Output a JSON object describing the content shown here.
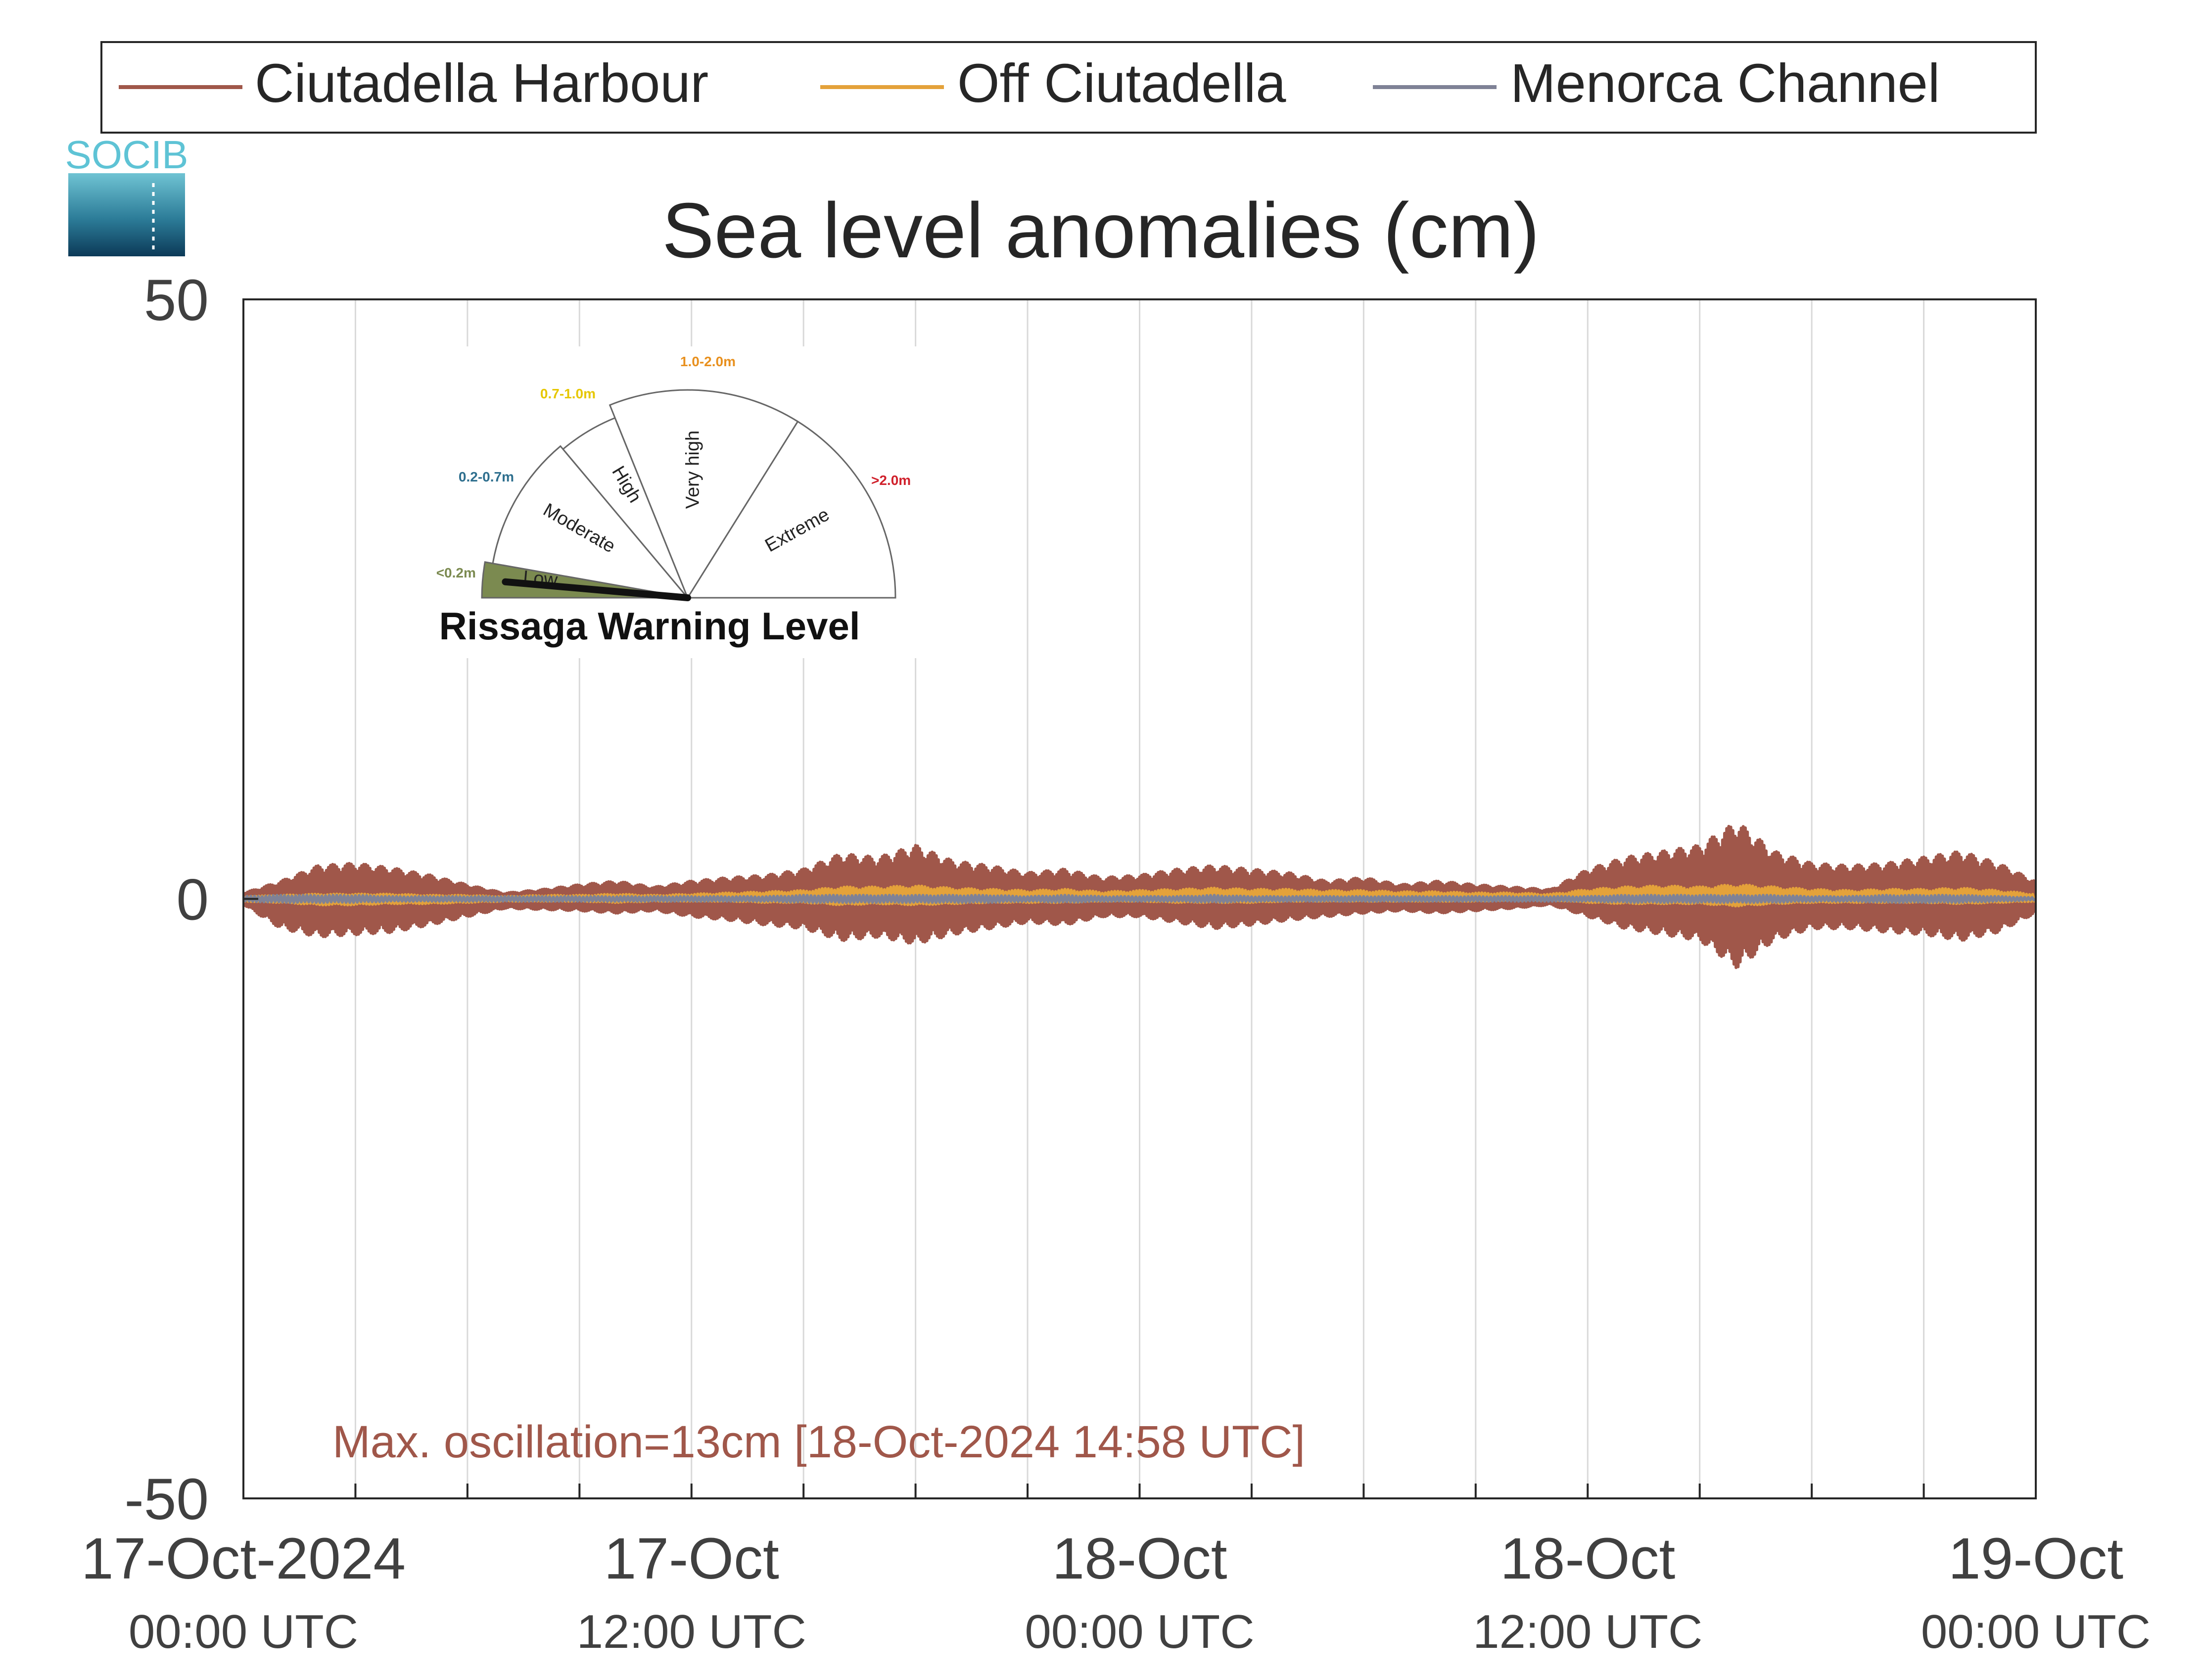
{
  "legend": {
    "items": [
      {
        "label": "Ciutadella Harbour",
        "color": "#a0574a"
      },
      {
        "label": "Off Ciutadella",
        "color": "#e4a23a"
      },
      {
        "label": "Menorca Channel",
        "color": "#7f8296"
      }
    ]
  },
  "logo": {
    "text": "SOCIB"
  },
  "annotation": {
    "text": "Max. oscillation=13cm [18-Oct-2024 14:58 UTC]",
    "color": "#a0574a"
  },
  "gauge": {
    "title": "Rissaga Warning Level",
    "current_level": "Low",
    "segments": [
      {
        "name": "Low",
        "range": "<0.2m",
        "range_color": "#7b8a50",
        "fill": "#7b8a50"
      },
      {
        "name": "Moderate",
        "range": "0.2-0.7m",
        "range_color": "#2e6f8e",
        "fill": "#ffffff"
      },
      {
        "name": "High",
        "range": "0.7-1.0m",
        "range_color": "#e6c700",
        "fill": "#ffffff"
      },
      {
        "name": "Very high",
        "range": "1.0-2.0m",
        "range_color": "#e8901e",
        "fill": "#ffffff"
      },
      {
        "name": "Extreme",
        "range": ">2.0m",
        "range_color": "#d0202b",
        "fill": "#ffffff"
      }
    ]
  },
  "chart_data": {
    "type": "line",
    "title": "Sea level anomalies (cm)",
    "xlabel": "",
    "ylabel": "",
    "ylim": [
      -50,
      50
    ],
    "xlim": [
      "2024-10-17 00:00",
      "2024-10-19 00:00"
    ],
    "yticks": [
      {
        "value": 50,
        "label": "50"
      },
      {
        "value": 0,
        "label": "0"
      },
      {
        "value": -50,
        "label": "-50"
      }
    ],
    "xticks": [
      {
        "value": "2024-10-17 00:00",
        "line1": "17-Oct-2024",
        "line2": "00:00 UTC"
      },
      {
        "value": "2024-10-17 12:00",
        "line1": "17-Oct",
        "line2": "12:00 UTC"
      },
      {
        "value": "2024-10-18 00:00",
        "line1": "18-Oct",
        "line2": "00:00 UTC"
      },
      {
        "value": "2024-10-18 12:00",
        "line1": "18-Oct",
        "line2": "12:00 UTC"
      },
      {
        "value": "2024-10-19 00:00",
        "line1": "19-Oct",
        "line2": "00:00 UTC"
      }
    ],
    "grid": {
      "vertical": true,
      "interval_hours": 3
    },
    "legend_position": "top",
    "series": [
      {
        "name": "Ciutadella Harbour",
        "color": "#a0574a",
        "time": [
          "2024-10-17 00:00",
          "2024-10-17 01:00",
          "2024-10-17 02:00",
          "2024-10-17 03:00",
          "2024-10-17 04:00",
          "2024-10-17 05:00",
          "2024-10-17 06:00",
          "2024-10-17 07:00",
          "2024-10-17 08:00",
          "2024-10-17 09:00",
          "2024-10-17 10:00",
          "2024-10-17 11:00",
          "2024-10-17 12:00",
          "2024-10-17 13:00",
          "2024-10-17 14:00",
          "2024-10-17 15:00",
          "2024-10-17 16:00",
          "2024-10-17 17:00",
          "2024-10-17 18:00",
          "2024-10-17 19:00",
          "2024-10-17 20:00",
          "2024-10-17 21:00",
          "2024-10-17 22:00",
          "2024-10-17 23:00",
          "2024-10-18 00:00",
          "2024-10-18 01:00",
          "2024-10-18 02:00",
          "2024-10-18 03:00",
          "2024-10-18 04:00",
          "2024-10-18 05:00",
          "2024-10-18 06:00",
          "2024-10-18 07:00",
          "2024-10-18 08:00",
          "2024-10-18 09:00",
          "2024-10-18 10:00",
          "2024-10-18 11:00",
          "2024-10-18 12:00",
          "2024-10-18 13:00",
          "2024-10-18 14:00",
          "2024-10-18 15:00",
          "2024-10-18 16:00",
          "2024-10-18 17:00",
          "2024-10-18 18:00",
          "2024-10-18 19:00",
          "2024-10-18 20:00",
          "2024-10-18 21:00",
          "2024-10-18 22:00",
          "2024-10-18 23:00",
          "2024-10-19 00:00"
        ],
        "max": [
          0.5,
          1.5,
          2.8,
          3.0,
          2.6,
          2.0,
          1.2,
          0.5,
          0.8,
          1.2,
          1.5,
          1.0,
          1.5,
          1.8,
          2.0,
          2.5,
          3.8,
          3.5,
          4.5,
          3.2,
          2.8,
          2.2,
          2.5,
          1.8,
          2.0,
          2.5,
          2.8,
          2.5,
          2.2,
          1.5,
          1.8,
          1.2,
          1.5,
          1.2,
          1.0,
          0.8,
          2.5,
          3.5,
          4.0,
          4.5,
          6.5,
          4.0,
          3.0,
          2.8,
          3.0,
          3.5,
          4.0,
          3.0,
          1.5
        ],
        "min": [
          -0.5,
          -2.5,
          -3.2,
          -3.0,
          -2.8,
          -2.2,
          -1.5,
          -0.8,
          -0.9,
          -1.0,
          -1.2,
          -1.0,
          -1.5,
          -1.8,
          -2.2,
          -2.5,
          -3.5,
          -3.2,
          -3.8,
          -3.0,
          -2.5,
          -2.0,
          -2.2,
          -1.5,
          -1.5,
          -2.0,
          -2.5,
          -2.2,
          -1.8,
          -1.5,
          -1.2,
          -1.0,
          -1.2,
          -1.0,
          -0.8,
          -0.5,
          -1.5,
          -2.5,
          -3.0,
          -3.5,
          -5.8,
          -3.5,
          -2.5,
          -2.5,
          -2.8,
          -3.0,
          -3.5,
          -2.8,
          -1.2
        ]
      },
      {
        "name": "Off Ciutadella",
        "color": "#e4a23a",
        "time": [
          "2024-10-17 00:00",
          "2024-10-17 01:00",
          "2024-10-17 02:00",
          "2024-10-17 03:00",
          "2024-10-17 04:00",
          "2024-10-17 05:00",
          "2024-10-17 06:00",
          "2024-10-17 07:00",
          "2024-10-17 08:00",
          "2024-10-17 09:00",
          "2024-10-17 10:00",
          "2024-10-17 11:00",
          "2024-10-17 12:00",
          "2024-10-17 13:00",
          "2024-10-17 14:00",
          "2024-10-17 15:00",
          "2024-10-17 16:00",
          "2024-10-17 17:00",
          "2024-10-17 18:00",
          "2024-10-17 19:00",
          "2024-10-17 20:00",
          "2024-10-17 21:00",
          "2024-10-17 22:00",
          "2024-10-17 23:00",
          "2024-10-18 00:00",
          "2024-10-18 01:00",
          "2024-10-18 02:00",
          "2024-10-18 03:00",
          "2024-10-18 04:00",
          "2024-10-18 05:00",
          "2024-10-18 06:00",
          "2024-10-18 07:00",
          "2024-10-18 08:00",
          "2024-10-18 09:00",
          "2024-10-18 10:00",
          "2024-10-18 11:00",
          "2024-10-18 12:00",
          "2024-10-18 13:00",
          "2024-10-18 14:00",
          "2024-10-18 15:00",
          "2024-10-18 16:00",
          "2024-10-18 17:00",
          "2024-10-18 18:00",
          "2024-10-18 19:00",
          "2024-10-18 20:00",
          "2024-10-18 21:00",
          "2024-10-18 22:00",
          "2024-10-18 23:00",
          "2024-10-19 00:00"
        ],
        "max": [
          0.2,
          0.3,
          0.4,
          0.4,
          0.4,
          0.3,
          0.3,
          0.2,
          0.3,
          0.3,
          0.4,
          0.3,
          0.4,
          0.5,
          0.6,
          0.7,
          1.0,
          1.0,
          1.1,
          0.9,
          0.8,
          0.7,
          0.8,
          0.6,
          0.7,
          0.8,
          0.9,
          0.8,
          0.8,
          0.7,
          0.7,
          0.6,
          0.6,
          0.5,
          0.5,
          0.4,
          0.8,
          1.0,
          1.1,
          1.0,
          1.2,
          1.0,
          0.8,
          0.7,
          0.8,
          0.8,
          0.9,
          0.7,
          0.4
        ],
        "min": [
          -0.2,
          -0.3,
          -0.5,
          -0.5,
          -0.4,
          -0.4,
          -0.3,
          -0.2,
          -0.2,
          -0.2,
          -0.3,
          -0.2,
          -0.2,
          -0.2,
          -0.3,
          -0.3,
          -0.5,
          -0.4,
          -0.5,
          -0.4,
          -0.3,
          -0.3,
          -0.3,
          -0.2,
          -0.2,
          -0.3,
          -0.3,
          -0.3,
          -0.2,
          -0.2,
          -0.2,
          -0.2,
          -0.2,
          -0.2,
          -0.1,
          -0.1,
          -0.3,
          -0.4,
          -0.4,
          -0.4,
          -0.6,
          -0.4,
          -0.3,
          -0.3,
          -0.3,
          -0.3,
          -0.4,
          -0.3,
          -0.2
        ]
      },
      {
        "name": "Menorca Channel",
        "color": "#7f8296",
        "time": [
          "2024-10-17 00:00",
          "2024-10-17 01:00",
          "2024-10-17 02:00",
          "2024-10-17 03:00",
          "2024-10-17 04:00",
          "2024-10-17 05:00",
          "2024-10-17 06:00",
          "2024-10-17 07:00",
          "2024-10-17 08:00",
          "2024-10-17 09:00",
          "2024-10-17 10:00",
          "2024-10-17 11:00",
          "2024-10-17 12:00",
          "2024-10-17 13:00",
          "2024-10-17 14:00",
          "2024-10-17 15:00",
          "2024-10-17 16:00",
          "2024-10-17 17:00",
          "2024-10-17 18:00",
          "2024-10-17 19:00",
          "2024-10-17 20:00",
          "2024-10-17 21:00",
          "2024-10-17 22:00",
          "2024-10-17 23:00",
          "2024-10-18 00:00",
          "2024-10-18 01:00",
          "2024-10-18 02:00",
          "2024-10-18 03:00",
          "2024-10-18 04:00",
          "2024-10-18 05:00",
          "2024-10-18 06:00",
          "2024-10-18 07:00",
          "2024-10-18 08:00",
          "2024-10-18 09:00",
          "2024-10-18 10:00",
          "2024-10-18 11:00",
          "2024-10-18 12:00",
          "2024-10-18 13:00",
          "2024-10-18 14:00",
          "2024-10-18 15:00",
          "2024-10-18 16:00",
          "2024-10-18 17:00",
          "2024-10-18 18:00",
          "2024-10-18 19:00",
          "2024-10-18 20:00",
          "2024-10-18 21:00",
          "2024-10-18 22:00",
          "2024-10-18 23:00",
          "2024-10-19 00:00"
        ],
        "max": [
          0.2,
          0.3,
          0.3,
          0.3,
          0.2,
          0.2,
          0.2,
          0.2,
          0.2,
          0.2,
          0.2,
          0.2,
          0.2,
          0.2,
          0.2,
          0.3,
          0.3,
          0.3,
          0.3,
          0.3,
          0.3,
          0.2,
          0.3,
          0.2,
          0.2,
          0.2,
          0.3,
          0.2,
          0.2,
          0.2,
          0.2,
          0.2,
          0.2,
          0.2,
          0.2,
          0.2,
          0.2,
          0.3,
          0.3,
          0.3,
          0.3,
          0.3,
          0.2,
          0.2,
          0.3,
          0.3,
          0.3,
          0.2,
          0.1
        ],
        "min": [
          -0.2,
          -0.3,
          -0.3,
          -0.3,
          -0.2,
          -0.2,
          -0.2,
          -0.2,
          -0.2,
          -0.2,
          -0.2,
          -0.2,
          -0.2,
          -0.2,
          -0.2,
          -0.3,
          -0.3,
          -0.3,
          -0.3,
          -0.3,
          -0.3,
          -0.2,
          -0.3,
          -0.2,
          -0.2,
          -0.2,
          -0.3,
          -0.2,
          -0.2,
          -0.2,
          -0.2,
          -0.2,
          -0.2,
          -0.2,
          -0.2,
          -0.2,
          -0.2,
          -0.3,
          -0.3,
          -0.3,
          -0.3,
          -0.3,
          -0.2,
          -0.2,
          -0.3,
          -0.3,
          -0.3,
          -0.2,
          -0.1
        ]
      }
    ]
  }
}
